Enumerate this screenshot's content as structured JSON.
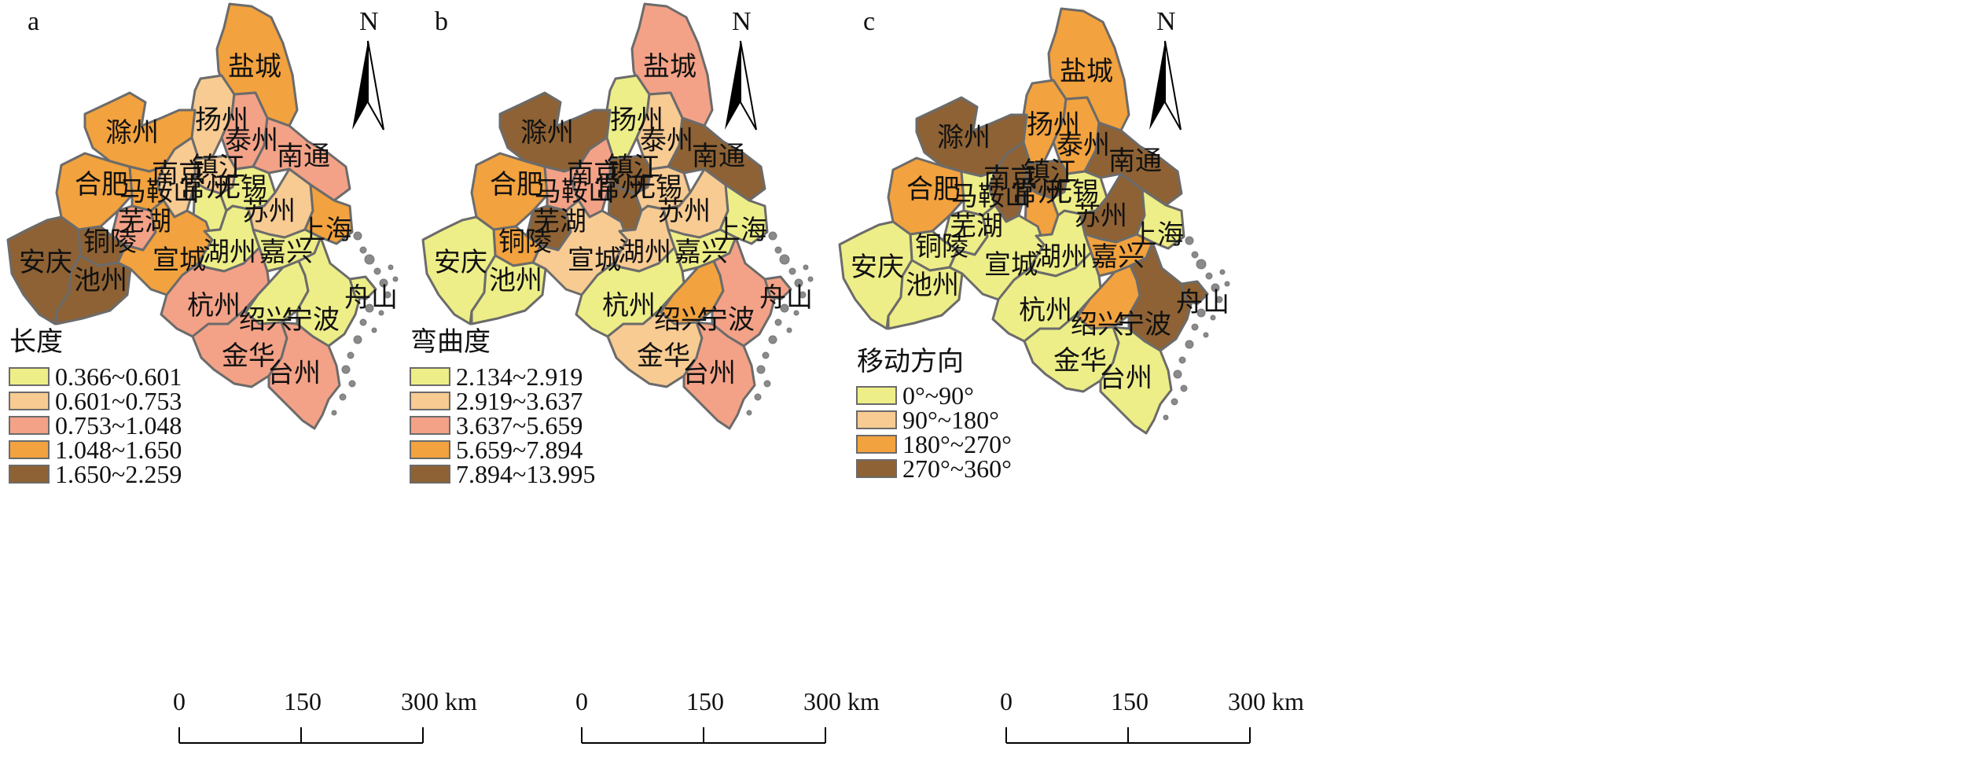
{
  "north_label": "N",
  "scale_bar": {
    "ticks": [
      "0",
      "150",
      "300 km"
    ]
  },
  "colors": {
    "c1": "#EEEE88",
    "c2": "#F7CB92",
    "c3": "#F3A287",
    "c4": "#F2A23E",
    "c5": "#8E6234"
  },
  "cities": {
    "yancheng": "盐城",
    "yangzhou": "扬州",
    "taizhou_js": "泰州",
    "nantong": "南通",
    "chuzhou": "滁州",
    "hefei": "合肥",
    "nanjing": "南京",
    "zhenjiang": "镇江",
    "changzhou": "常州",
    "wuxi": "无锡",
    "suzhou": "苏州",
    "shanghai": "上海",
    "maanshan": "马鞍山",
    "wuhu": "芜湖",
    "tongling": "铜陵",
    "anqing": "安庆",
    "chizhou": "池州",
    "xuancheng": "宣城",
    "huzhou": "湖州",
    "jiaxing": "嘉兴",
    "hangzhou": "杭州",
    "shaoxing": "绍兴",
    "ningbo": "宁波",
    "zhoushan": "舟山",
    "jinhua": "金华",
    "taizhou_zj": "台州"
  },
  "panels": [
    {
      "letter": "a",
      "legend_title": "长度",
      "legend": [
        "0.366~0.601",
        "0.601~0.753",
        "0.753~1.048",
        "1.048~1.650",
        "1.650~2.259"
      ],
      "classes": {
        "yancheng": 4,
        "yangzhou": 2,
        "taizhou_js": 3,
        "nantong": 3,
        "chuzhou": 4,
        "hefei": 4,
        "nanjing": 2,
        "zhenjiang": 2,
        "changzhou": 1,
        "wuxi": 1,
        "suzhou": 2,
        "shanghai": 4,
        "maanshan": 4,
        "wuhu": 3,
        "tongling": 5,
        "anqing": 5,
        "chizhou": 5,
        "xuancheng": 4,
        "huzhou": 1,
        "jiaxing": 1,
        "hangzhou": 3,
        "shaoxing": 1,
        "ningbo": 1,
        "zhoushan": 1,
        "jinhua": 3,
        "taizhou_zj": 3
      }
    },
    {
      "letter": "b",
      "legend_title": "弯曲度",
      "legend": [
        "2.134~2.919",
        "2.919~3.637",
        "3.637~5.659",
        "5.659~7.894",
        "7.894~13.995"
      ],
      "classes": {
        "yancheng": 3,
        "yangzhou": 1,
        "taizhou_js": 2,
        "nantong": 5,
        "chuzhou": 5,
        "hefei": 4,
        "nanjing": 3,
        "zhenjiang": 5,
        "changzhou": 5,
        "wuxi": 2,
        "suzhou": 2,
        "shanghai": 1,
        "maanshan": 3,
        "wuhu": 5,
        "tongling": 4,
        "anqing": 1,
        "chizhou": 1,
        "xuancheng": 2,
        "huzhou": 2,
        "jiaxing": 1,
        "hangzhou": 1,
        "shaoxing": 4,
        "ningbo": 3,
        "zhoushan": 3,
        "jinhua": 2,
        "taizhou_zj": 3
      }
    },
    {
      "letter": "c",
      "legend_title": "移动方向",
      "legend": [
        "0°~90°",
        "90°~180°",
        "180°~270°",
        "270°~360°"
      ],
      "classes": {
        "yancheng": 4,
        "yangzhou": 4,
        "taizhou_js": 4,
        "nantong": 5,
        "chuzhou": 5,
        "hefei": 4,
        "nanjing": 5,
        "zhenjiang": 5,
        "changzhou": 4,
        "wuxi": 2,
        "suzhou": 5,
        "shanghai": 2,
        "maanshan": 2,
        "wuhu": 2,
        "tongling": 1,
        "anqing": 1,
        "chizhou": 1,
        "xuancheng": 1,
        "huzhou": 2,
        "jiaxing": 4,
        "hangzhou": 1,
        "shaoxing": 4,
        "ningbo": 5,
        "zhoushan": 5,
        "jinhua": 2,
        "taizhou_zj": 1
      }
    }
  ]
}
